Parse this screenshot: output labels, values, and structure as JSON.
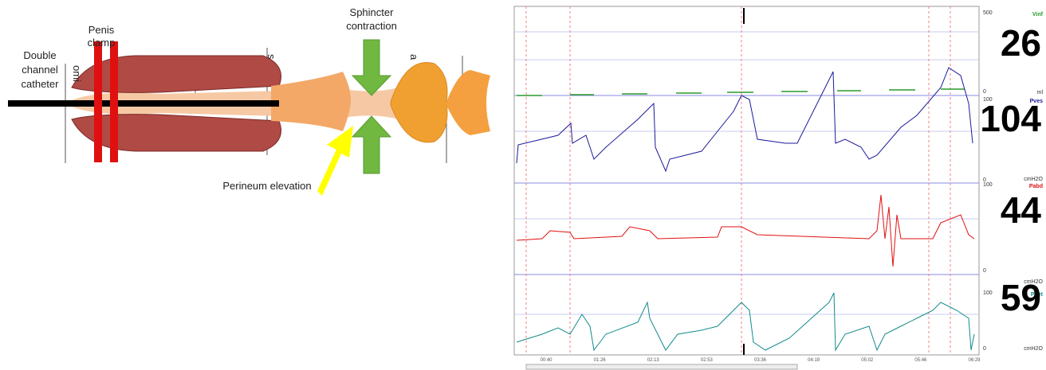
{
  "diagram": {
    "labels": {
      "catheter": [
        "Double",
        "channel",
        "catheter"
      ],
      "clamp": [
        "Penis",
        "clamp"
      ],
      "sphincter": [
        "Sphincter",
        "contraction"
      ],
      "perineum": "Perineum elevation",
      "mark_1": "omi",
      "mark_2": "s",
      "mark_3": "a"
    }
  },
  "monitor": {
    "channels": [
      {
        "name": "Vinf",
        "top": 500,
        "bottom": 0,
        "unit": "ml",
        "reading": 26
      },
      {
        "name": "Pves",
        "top": 100,
        "bottom": 0,
        "unit": "cmH2O",
        "reading": 104
      },
      {
        "name": "Pabd",
        "top": 100,
        "bottom": 0,
        "unit": "cmH2O",
        "reading": 44
      },
      {
        "name": "Pdet",
        "top": 100,
        "bottom": 0,
        "unit": "cmH2O",
        "reading": 59
      }
    ],
    "time_labels": [
      "00:40",
      "01:26",
      "02:13",
      "02:53",
      "03:36",
      "04:19",
      "05:02",
      "05:46",
      "06:29"
    ]
  }
}
